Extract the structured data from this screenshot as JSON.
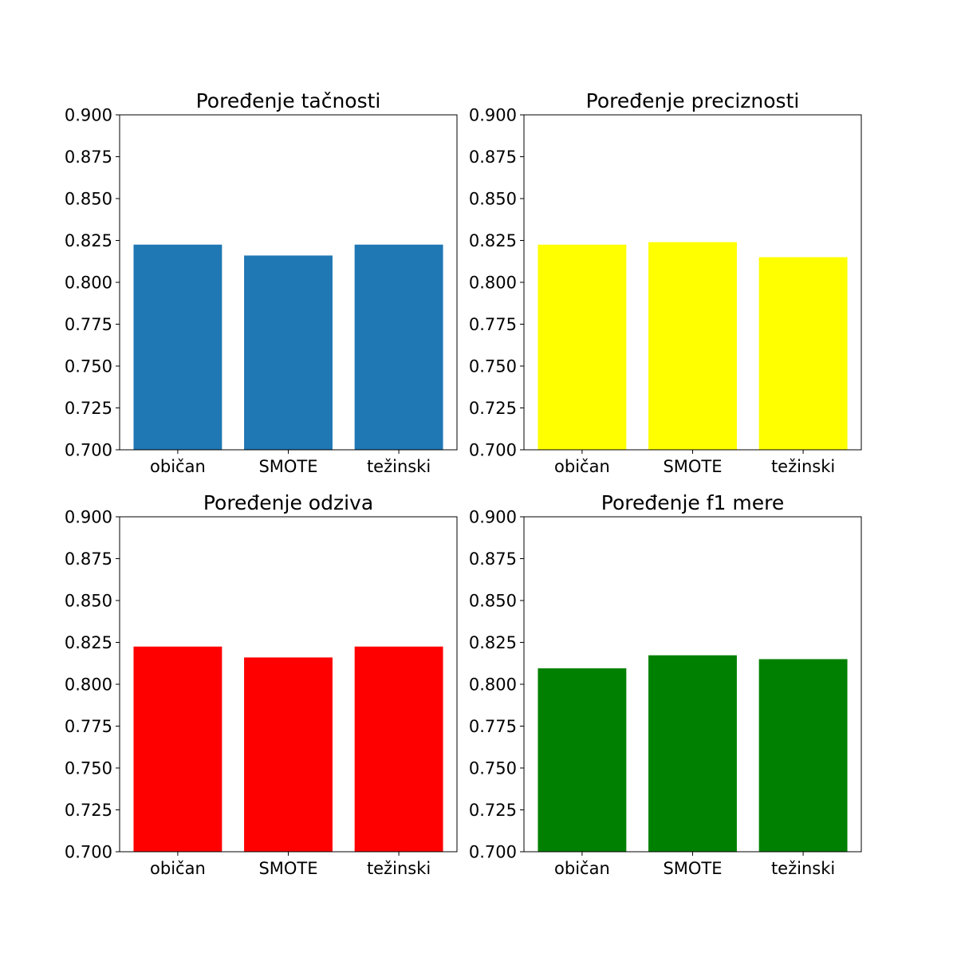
{
  "chart_data": [
    {
      "type": "bar",
      "title": "Poređenje tačnosti",
      "categories": [
        "običan",
        "SMOTE",
        "težinski"
      ],
      "values": [
        0.8225,
        0.816,
        0.8225
      ],
      "color": "#1f77b4",
      "xlabel": "",
      "ylabel": "",
      "ylim": [
        0.7,
        0.9
      ],
      "yticks": [
        "0.700",
        "0.725",
        "0.750",
        "0.775",
        "0.800",
        "0.825",
        "0.850",
        "0.875",
        "0.900"
      ],
      "grid": false
    },
    {
      "type": "bar",
      "title": "Poređenje preciznosti",
      "categories": [
        "običan",
        "SMOTE",
        "težinski"
      ],
      "values": [
        0.8225,
        0.824,
        0.815
      ],
      "color": "#ffff00",
      "xlabel": "",
      "ylabel": "",
      "ylim": [
        0.7,
        0.9
      ],
      "yticks": [
        "0.700",
        "0.725",
        "0.750",
        "0.775",
        "0.800",
        "0.825",
        "0.850",
        "0.875",
        "0.900"
      ],
      "grid": false
    },
    {
      "type": "bar",
      "title": "Poređenje odziva",
      "categories": [
        "običan",
        "SMOTE",
        "težinski"
      ],
      "values": [
        0.8225,
        0.816,
        0.8225
      ],
      "color": "#ff0000",
      "xlabel": "",
      "ylabel": "",
      "ylim": [
        0.7,
        0.9
      ],
      "yticks": [
        "0.700",
        "0.725",
        "0.750",
        "0.775",
        "0.800",
        "0.825",
        "0.850",
        "0.875",
        "0.900"
      ],
      "grid": false
    },
    {
      "type": "bar",
      "title": "Poređenje f1 mere",
      "categories": [
        "običan",
        "SMOTE",
        "težinski"
      ],
      "values": [
        0.8095,
        0.8173,
        0.815
      ],
      "color": "#008000",
      "xlabel": "",
      "ylabel": "",
      "ylim": [
        0.7,
        0.9
      ],
      "yticks": [
        "0.700",
        "0.725",
        "0.750",
        "0.775",
        "0.800",
        "0.825",
        "0.850",
        "0.875",
        "0.900"
      ],
      "grid": false
    }
  ]
}
